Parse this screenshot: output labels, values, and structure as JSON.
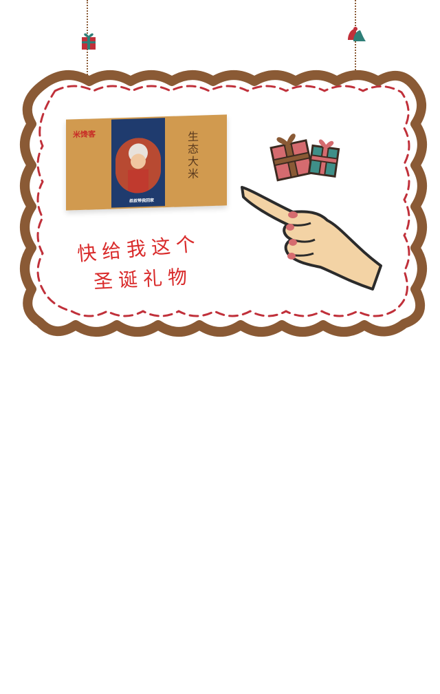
{
  "product": {
    "brand_logo": "米馋客",
    "title": "生态大米",
    "caption": "叔叔带我回家"
  },
  "slogan": {
    "line1": "快给我这个",
    "line2": "圣诞礼物"
  },
  "colors": {
    "frame_brown": "#8a5a35",
    "dash_red": "#c0303a",
    "slogan_red": "#d92b2b",
    "box_kraft": "#d19a4f",
    "panel_blue": "#1f3b6e",
    "gift_red": "#d56b6f",
    "gift_teal": "#3f8f88",
    "hand_skin": "#f3d3a5"
  },
  "icons": {
    "hanging_gift_left": "gift-ornament-icon",
    "hanging_bell_right": "bell-ornament-icon",
    "gifts": "gift-box-icon",
    "pointing_hand": "pointing-hand-icon"
  }
}
